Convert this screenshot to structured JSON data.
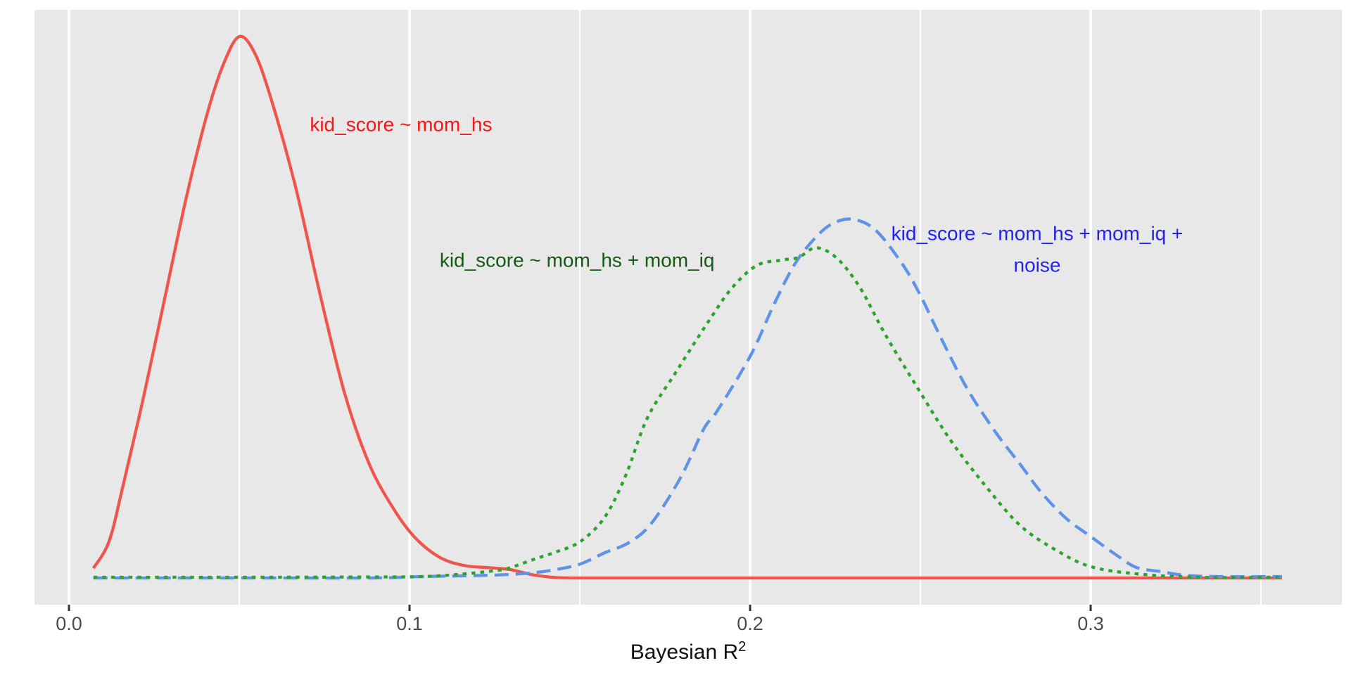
{
  "colors": {
    "background": "#ffffff",
    "panel": "#e8e8e8",
    "gridline_major": "#ffffff",
    "gridline_minor": "#ffffff",
    "tick_mark": "#333333",
    "tick_label": "#4d4d4d",
    "axis_title": "#111111"
  },
  "axis": {
    "x_title_base": "Bayesian R",
    "x_title_sup": "2"
  },
  "annotations": [
    {
      "text": "kid_score ~ mom_hs",
      "color": "#fa1414",
      "x": 0.0975,
      "h": 0.838
    },
    {
      "text": "kid_score ~ mom_hs + mom_iq",
      "color": "#145a14",
      "x": 0.1492,
      "h": 0.587
    },
    {
      "text": "kid_score ~ mom_hs + mom_iq +\nnoise",
      "color": "#2222ee",
      "x": 0.2843,
      "h": 0.6065
    }
  ],
  "chart_data": {
    "type": "line",
    "subtype": "density",
    "title": "",
    "xlabel": "Bayesian R^2",
    "ylabel": "",
    "x_range": [
      -0.0101,
      0.3738
    ],
    "grid": "on",
    "legend_position": "none (direct curve annotations)",
    "y_note": "no y axis shown; heights normalized so tallest (red) peak = 1",
    "x_ticks": [
      {
        "value": 0.0,
        "label": "0.0"
      },
      {
        "value": 0.1,
        "label": "0.1"
      },
      {
        "value": 0.2,
        "label": "0.2"
      },
      {
        "value": 0.3,
        "label": "0.3"
      }
    ],
    "x_minor_gridlines": [
      0.05,
      0.15,
      0.25,
      0.35
    ],
    "series": [
      {
        "key": "mom_hs",
        "name": "kid_score ~ mom_hs",
        "color": "#f0554d",
        "linestyle": "solid",
        "peak": {
          "x": 0.05,
          "h": 1.0
        },
        "points": [
          [
            0.0072,
            0.018
          ],
          [
            0.0118,
            0.068
          ],
          [
            0.0159,
            0.171
          ],
          [
            0.0221,
            0.34
          ],
          [
            0.0283,
            0.522
          ],
          [
            0.0345,
            0.704
          ],
          [
            0.0407,
            0.86
          ],
          [
            0.0455,
            0.951
          ],
          [
            0.05,
            1.0
          ],
          [
            0.0545,
            0.97
          ],
          [
            0.0593,
            0.886
          ],
          [
            0.0665,
            0.723
          ],
          [
            0.0738,
            0.522
          ],
          [
            0.081,
            0.34
          ],
          [
            0.0882,
            0.21
          ],
          [
            0.0955,
            0.126
          ],
          [
            0.1017,
            0.074
          ],
          [
            0.1089,
            0.038
          ],
          [
            0.1161,
            0.023
          ],
          [
            0.1234,
            0.019
          ],
          [
            0.1295,
            0.0156
          ],
          [
            0.1357,
            0.0065
          ],
          [
            0.1419,
            0.0013
          ],
          [
            0.1492,
            0.0
          ],
          [
            0.18,
            0.0
          ],
          [
            0.22,
            0.0
          ],
          [
            0.26,
            0.0
          ],
          [
            0.3,
            0.0
          ],
          [
            0.3562,
            0.0
          ]
        ]
      },
      {
        "key": "mom_hs_mom_iq_noise",
        "name": "kid_score ~ mom_hs + mom_iq + noise",
        "color": "#5f93e8",
        "linestyle": "dashed",
        "peak": {
          "x": 0.2304,
          "h": 0.662
        },
        "points": [
          [
            0.0072,
            0.0
          ],
          [
            0.03,
            0.0
          ],
          [
            0.06,
            0.0
          ],
          [
            0.09,
            0.0
          ],
          [
            0.1037,
            0.0026
          ],
          [
            0.1244,
            0.0052
          ],
          [
            0.1353,
            0.0091
          ],
          [
            0.143,
            0.0156
          ],
          [
            0.1502,
            0.026
          ],
          [
            0.1574,
            0.0468
          ],
          [
            0.1643,
            0.065
          ],
          [
            0.1709,
            0.1
          ],
          [
            0.1795,
            0.1844
          ],
          [
            0.1864,
            0.2753
          ],
          [
            0.1905,
            0.31
          ],
          [
            0.2002,
            0.4117
          ],
          [
            0.207,
            0.5052
          ],
          [
            0.2132,
            0.5805
          ],
          [
            0.2194,
            0.63
          ],
          [
            0.2246,
            0.6558
          ],
          [
            0.2304,
            0.6623
          ],
          [
            0.237,
            0.6416
          ],
          [
            0.2449,
            0.578
          ],
          [
            0.25,
            0.522
          ],
          [
            0.256,
            0.444
          ],
          [
            0.2638,
            0.349
          ],
          [
            0.2721,
            0.269
          ],
          [
            0.2793,
            0.21
          ],
          [
            0.2855,
            0.158
          ],
          [
            0.2928,
            0.11
          ],
          [
            0.3,
            0.0766
          ],
          [
            0.3072,
            0.044
          ],
          [
            0.3134,
            0.0195
          ],
          [
            0.3207,
            0.0117
          ],
          [
            0.3275,
            0.0052
          ],
          [
            0.3372,
            0.0026
          ],
          [
            0.3562,
            0.0026
          ]
        ]
      },
      {
        "key": "mom_hs_mom_iq",
        "name": "kid_score ~ mom_hs + mom_iq",
        "color": "#2ca42c",
        "linestyle": "dotted",
        "peak": {
          "x": 0.2194,
          "h": 0.61
        },
        "points": [
          [
            0.0072,
            0.0013
          ],
          [
            0.03,
            0.0013
          ],
          [
            0.06,
            0.0013
          ],
          [
            0.09,
            0.0019
          ],
          [
            0.1037,
            0.0026
          ],
          [
            0.114,
            0.0065
          ],
          [
            0.1244,
            0.013
          ],
          [
            0.1291,
            0.018
          ],
          [
            0.1368,
            0.035
          ],
          [
            0.143,
            0.048
          ],
          [
            0.1502,
            0.0675
          ],
          [
            0.1574,
            0.113
          ],
          [
            0.1636,
            0.191
          ],
          [
            0.1698,
            0.295
          ],
          [
            0.1781,
            0.379
          ],
          [
            0.1878,
            0.474
          ],
          [
            0.1946,
            0.535
          ],
          [
            0.2019,
            0.577
          ],
          [
            0.2091,
            0.587
          ],
          [
            0.2142,
            0.592
          ],
          [
            0.2194,
            0.61
          ],
          [
            0.2256,
            0.59
          ],
          [
            0.2324,
            0.535
          ],
          [
            0.2394,
            0.453
          ],
          [
            0.2483,
            0.36
          ],
          [
            0.2587,
            0.256
          ],
          [
            0.269,
            0.171
          ],
          [
            0.2793,
            0.097
          ],
          [
            0.2897,
            0.052
          ],
          [
            0.3,
            0.021
          ],
          [
            0.3134,
            0.0078
          ],
          [
            0.331,
            0.0013
          ],
          [
            0.3552,
            0.0013
          ]
        ]
      }
    ]
  }
}
